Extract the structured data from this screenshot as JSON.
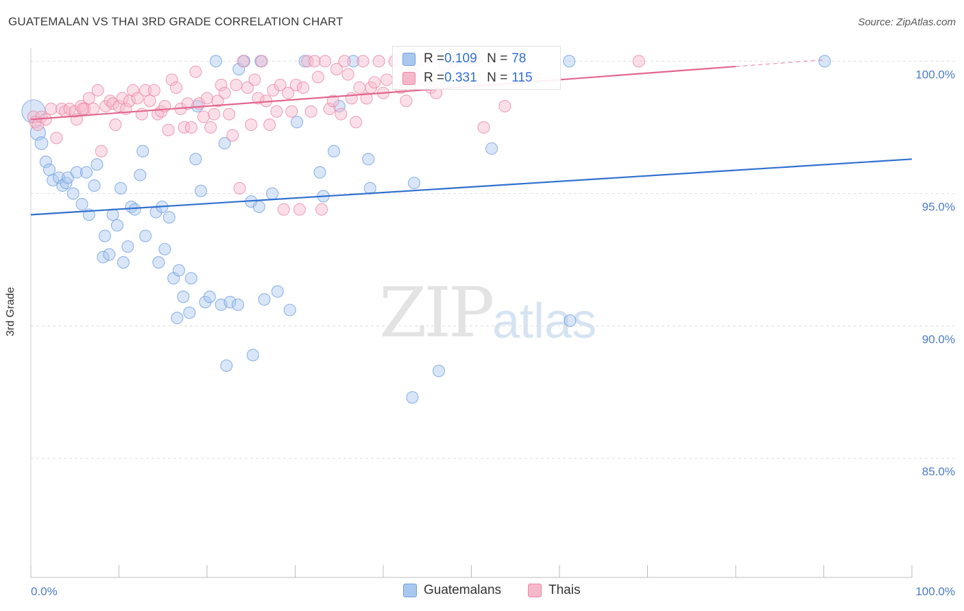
{
  "title": "GUATEMALAN VS THAI 3RD GRADE CORRELATION CHART",
  "source": "Source: ZipAtlas.com",
  "watermark": {
    "zip": "ZIP",
    "atlas": "atlas"
  },
  "stats": [
    {
      "r_label": "R = ",
      "r_value": "0.109",
      "n_label": "N = ",
      "n_value": "78",
      "color": "#a9c8f0",
      "border": "#6f9ee0"
    },
    {
      "r_label": "R = ",
      "r_value": "0.331",
      "n_label": "N = ",
      "n_value": "115",
      "color": "#f6b8cb",
      "border": "#ea87a5"
    }
  ],
  "legend": [
    {
      "label": "Guatemalans",
      "color": "#a9c8f0",
      "border": "#6f9ee0"
    },
    {
      "label": "Thais",
      "color": "#f6b8cb",
      "border": "#ea87a5"
    }
  ],
  "chart_data": {
    "type": "scatter",
    "title": "GUATEMALAN VS THAI 3RD GRADE CORRELATION CHART",
    "xlabel": "",
    "ylabel": "3rd Grade",
    "xlim": [
      0,
      100
    ],
    "ylim": [
      80.5,
      100.5
    ],
    "x_tick_labels": [
      "0.0%",
      "100.0%"
    ],
    "y_ticks": [
      85,
      90,
      95,
      100
    ],
    "y_tick_labels": [
      "85.0%",
      "90.0%",
      "95.0%",
      "100.0%"
    ],
    "grid": true,
    "series": [
      {
        "name": "Guatemalans",
        "color": "#6f9ee0",
        "fill": "#a9c8f0",
        "trend": {
          "x": [
            0,
            100
          ],
          "y": [
            94.2,
            96.3
          ],
          "color": "#2f6fcf"
        },
        "points": [
          [
            0.3,
            98.1,
            2.0
          ],
          [
            0.8,
            97.3,
            1.3
          ],
          [
            1.2,
            96.9,
            1.1
          ],
          [
            1.7,
            96.2,
            1
          ],
          [
            2.1,
            95.9,
            1
          ],
          [
            2.5,
            95.5,
            1
          ],
          [
            3.2,
            95.6,
            1
          ],
          [
            3.6,
            95.3,
            1
          ],
          [
            4.0,
            95.4,
            1
          ],
          [
            4.2,
            95.6,
            1
          ],
          [
            4.8,
            95.0,
            1
          ],
          [
            5.2,
            95.8,
            1
          ],
          [
            5.8,
            94.6,
            1
          ],
          [
            6.3,
            95.8,
            1
          ],
          [
            6.6,
            94.2,
            1
          ],
          [
            7.2,
            95.3,
            1
          ],
          [
            7.5,
            96.1,
            1
          ],
          [
            8.2,
            92.6,
            1
          ],
          [
            8.4,
            93.4,
            1
          ],
          [
            8.9,
            92.7,
            1
          ],
          [
            9.3,
            94.2,
            1
          ],
          [
            9.8,
            93.8,
            1
          ],
          [
            10.2,
            95.2,
            1
          ],
          [
            10.5,
            92.4,
            1
          ],
          [
            11.0,
            93.0,
            1
          ],
          [
            11.4,
            94.5,
            1
          ],
          [
            11.8,
            94.4,
            1
          ],
          [
            12.4,
            95.7,
            1
          ],
          [
            12.7,
            96.6,
            1
          ],
          [
            13.0,
            93.4,
            1
          ],
          [
            14.2,
            94.3,
            1
          ],
          [
            14.5,
            92.4,
            1
          ],
          [
            14.9,
            94.5,
            1
          ],
          [
            15.2,
            92.9,
            1
          ],
          [
            15.7,
            94.1,
            1
          ],
          [
            16.2,
            91.8,
            1
          ],
          [
            16.8,
            92.1,
            1
          ],
          [
            17.3,
            91.1,
            1
          ],
          [
            18.0,
            90.5,
            1
          ],
          [
            18.2,
            91.8,
            1
          ],
          [
            16.6,
            90.3,
            1
          ],
          [
            18.7,
            96.3,
            1
          ],
          [
            18.9,
            98.3,
            1
          ],
          [
            19.3,
            95.1,
            1
          ],
          [
            19.8,
            90.9,
            1
          ],
          [
            20.3,
            91.1,
            1
          ],
          [
            21.0,
            100.0,
            1
          ],
          [
            21.6,
            90.8,
            1
          ],
          [
            22.0,
            96.9,
            1
          ],
          [
            22.2,
            88.5,
            1
          ],
          [
            22.6,
            90.9,
            1
          ],
          [
            23.5,
            90.8,
            1
          ],
          [
            23.6,
            99.7,
            1
          ],
          [
            24.2,
            100.0,
            1
          ],
          [
            25.0,
            94.7,
            1
          ],
          [
            25.2,
            88.9,
            1
          ],
          [
            25.9,
            94.5,
            1
          ],
          [
            26.1,
            100.0,
            1
          ],
          [
            26.5,
            91.0,
            1
          ],
          [
            27.4,
            95.0,
            1
          ],
          [
            28.0,
            91.3,
            1
          ],
          [
            29.4,
            90.6,
            1
          ],
          [
            30.2,
            97.7,
            1
          ],
          [
            31.1,
            100.0,
            1
          ],
          [
            32.8,
            95.8,
            1
          ],
          [
            33.2,
            94.9,
            1
          ],
          [
            34.4,
            96.6,
            1
          ],
          [
            35.0,
            98.3,
            1
          ],
          [
            36.6,
            100.0,
            1
          ],
          [
            38.3,
            96.3,
            1
          ],
          [
            38.5,
            95.2,
            1
          ],
          [
            43.3,
            87.3,
            1
          ],
          [
            43.5,
            95.4,
            1
          ],
          [
            46.3,
            88.3,
            1
          ],
          [
            52.3,
            96.7,
            1
          ],
          [
            61.1,
            100.0,
            1
          ],
          [
            61.2,
            90.2,
            1
          ],
          [
            90.1,
            100.0,
            1
          ]
        ]
      },
      {
        "name": "Thais",
        "color": "#ea87a5",
        "fill": "#f6b8cb",
        "trend": {
          "x": [
            0,
            80
          ],
          "y": [
            97.8,
            99.8
          ],
          "color": "#e2668d"
        },
        "trend_dashed_extension": {
          "x": [
            80,
            90
          ],
          "y": [
            99.8,
            100.05
          ]
        },
        "points": [
          [
            0.3,
            97.9,
            1
          ],
          [
            0.5,
            97.7,
            1
          ],
          [
            0.8,
            97.6,
            1
          ],
          [
            1.2,
            97.9,
            1
          ],
          [
            1.7,
            97.8,
            1
          ],
          [
            2.3,
            98.2,
            1
          ],
          [
            2.9,
            97.1,
            1
          ],
          [
            3.5,
            98.2,
            1
          ],
          [
            3.9,
            98.1,
            1
          ],
          [
            4.4,
            98.2,
            1
          ],
          [
            5.0,
            98.1,
            1
          ],
          [
            5.2,
            97.8,
            1
          ],
          [
            5.7,
            98.3,
            1
          ],
          [
            6.1,
            98.2,
            1
          ],
          [
            6.6,
            98.6,
            1
          ],
          [
            7.1,
            98.2,
            1
          ],
          [
            7.6,
            98.9,
            1
          ],
          [
            8.0,
            96.6,
            1
          ],
          [
            8.5,
            98.3,
            1
          ],
          [
            9.0,
            98.5,
            1
          ],
          [
            9.3,
            98.4,
            1
          ],
          [
            9.6,
            97.6,
            1
          ],
          [
            10.0,
            98.3,
            1
          ],
          [
            10.4,
            98.6,
            1
          ],
          [
            10.8,
            98.2,
            1
          ],
          [
            11.2,
            98.5,
            1
          ],
          [
            11.6,
            98.9,
            1
          ],
          [
            12.1,
            98.6,
            1
          ],
          [
            12.6,
            98.0,
            1
          ],
          [
            13.0,
            98.9,
            1
          ],
          [
            13.5,
            98.5,
            1
          ],
          [
            14.0,
            98.9,
            1
          ],
          [
            14.4,
            98.0,
            1
          ],
          [
            14.8,
            98.1,
            1
          ],
          [
            15.2,
            98.3,
            1
          ],
          [
            15.6,
            97.4,
            1
          ],
          [
            16.0,
            99.3,
            1
          ],
          [
            16.5,
            99.0,
            1
          ],
          [
            17.0,
            98.2,
            1
          ],
          [
            17.4,
            97.5,
            1
          ],
          [
            17.8,
            98.4,
            1
          ],
          [
            18.2,
            97.5,
            1
          ],
          [
            18.7,
            99.6,
            1
          ],
          [
            19.1,
            98.4,
            1
          ],
          [
            19.6,
            97.9,
            1
          ],
          [
            20.0,
            98.6,
            1
          ],
          [
            20.4,
            97.5,
            1
          ],
          [
            20.8,
            98.0,
            1
          ],
          [
            21.2,
            98.5,
            1
          ],
          [
            21.6,
            99.1,
            1
          ],
          [
            22.0,
            98.8,
            1
          ],
          [
            22.5,
            98.0,
            1
          ],
          [
            22.9,
            97.2,
            1
          ],
          [
            23.3,
            99.1,
            1
          ],
          [
            23.7,
            95.2,
            1
          ],
          [
            24.1,
            100.0,
            1
          ],
          [
            24.6,
            99.0,
            1
          ],
          [
            25.0,
            97.6,
            1
          ],
          [
            25.4,
            99.3,
            1
          ],
          [
            25.8,
            98.6,
            1
          ],
          [
            26.2,
            100.0,
            1
          ],
          [
            26.7,
            98.5,
            1
          ],
          [
            27.1,
            97.6,
            1
          ],
          [
            27.5,
            98.9,
            1
          ],
          [
            27.9,
            98.1,
            1
          ],
          [
            28.3,
            99.1,
            1
          ],
          [
            28.7,
            94.4,
            1
          ],
          [
            29.2,
            98.8,
            1
          ],
          [
            29.6,
            98.1,
            1
          ],
          [
            30.1,
            99.1,
            1
          ],
          [
            30.5,
            94.4,
            1
          ],
          [
            30.9,
            99.0,
            1
          ],
          [
            31.4,
            100.0,
            1
          ],
          [
            31.8,
            98.1,
            1
          ],
          [
            32.2,
            100.0,
            1
          ],
          [
            32.6,
            99.4,
            1
          ],
          [
            33.0,
            94.4,
            1
          ],
          [
            33.4,
            100.0,
            1
          ],
          [
            33.9,
            98.2,
            1
          ],
          [
            34.3,
            98.5,
            1
          ],
          [
            34.7,
            99.7,
            1
          ],
          [
            35.2,
            98.0,
            1
          ],
          [
            35.6,
            100.0,
            1
          ],
          [
            36.0,
            99.5,
            1
          ],
          [
            36.4,
            98.6,
            1
          ],
          [
            36.9,
            97.7,
            1
          ],
          [
            37.3,
            99.0,
            1
          ],
          [
            37.7,
            100.0,
            1
          ],
          [
            38.1,
            98.6,
            1
          ],
          [
            38.6,
            99.0,
            1
          ],
          [
            39.0,
            99.2,
            1
          ],
          [
            39.5,
            100.0,
            1
          ],
          [
            40.0,
            98.8,
            1
          ],
          [
            40.4,
            99.3,
            1
          ],
          [
            41.3,
            100.0,
            1
          ],
          [
            42.0,
            99.0,
            1
          ],
          [
            42.6,
            98.5,
            1
          ],
          [
            43.3,
            99.5,
            1
          ],
          [
            44.0,
            100.0,
            1
          ],
          [
            44.7,
            99.3,
            1
          ],
          [
            45.4,
            99.0,
            1
          ],
          [
            46.0,
            98.8,
            1
          ],
          [
            47.0,
            99.8,
            1
          ],
          [
            48.0,
            100.0,
            1
          ],
          [
            49.1,
            99.3,
            1
          ],
          [
            50.5,
            100.0,
            1
          ],
          [
            51.4,
            97.5,
            1
          ],
          [
            53.8,
            98.3,
            1
          ],
          [
            69.0,
            100.0,
            1
          ],
          [
            5.9,
            98.2,
            1
          ]
        ]
      }
    ]
  }
}
